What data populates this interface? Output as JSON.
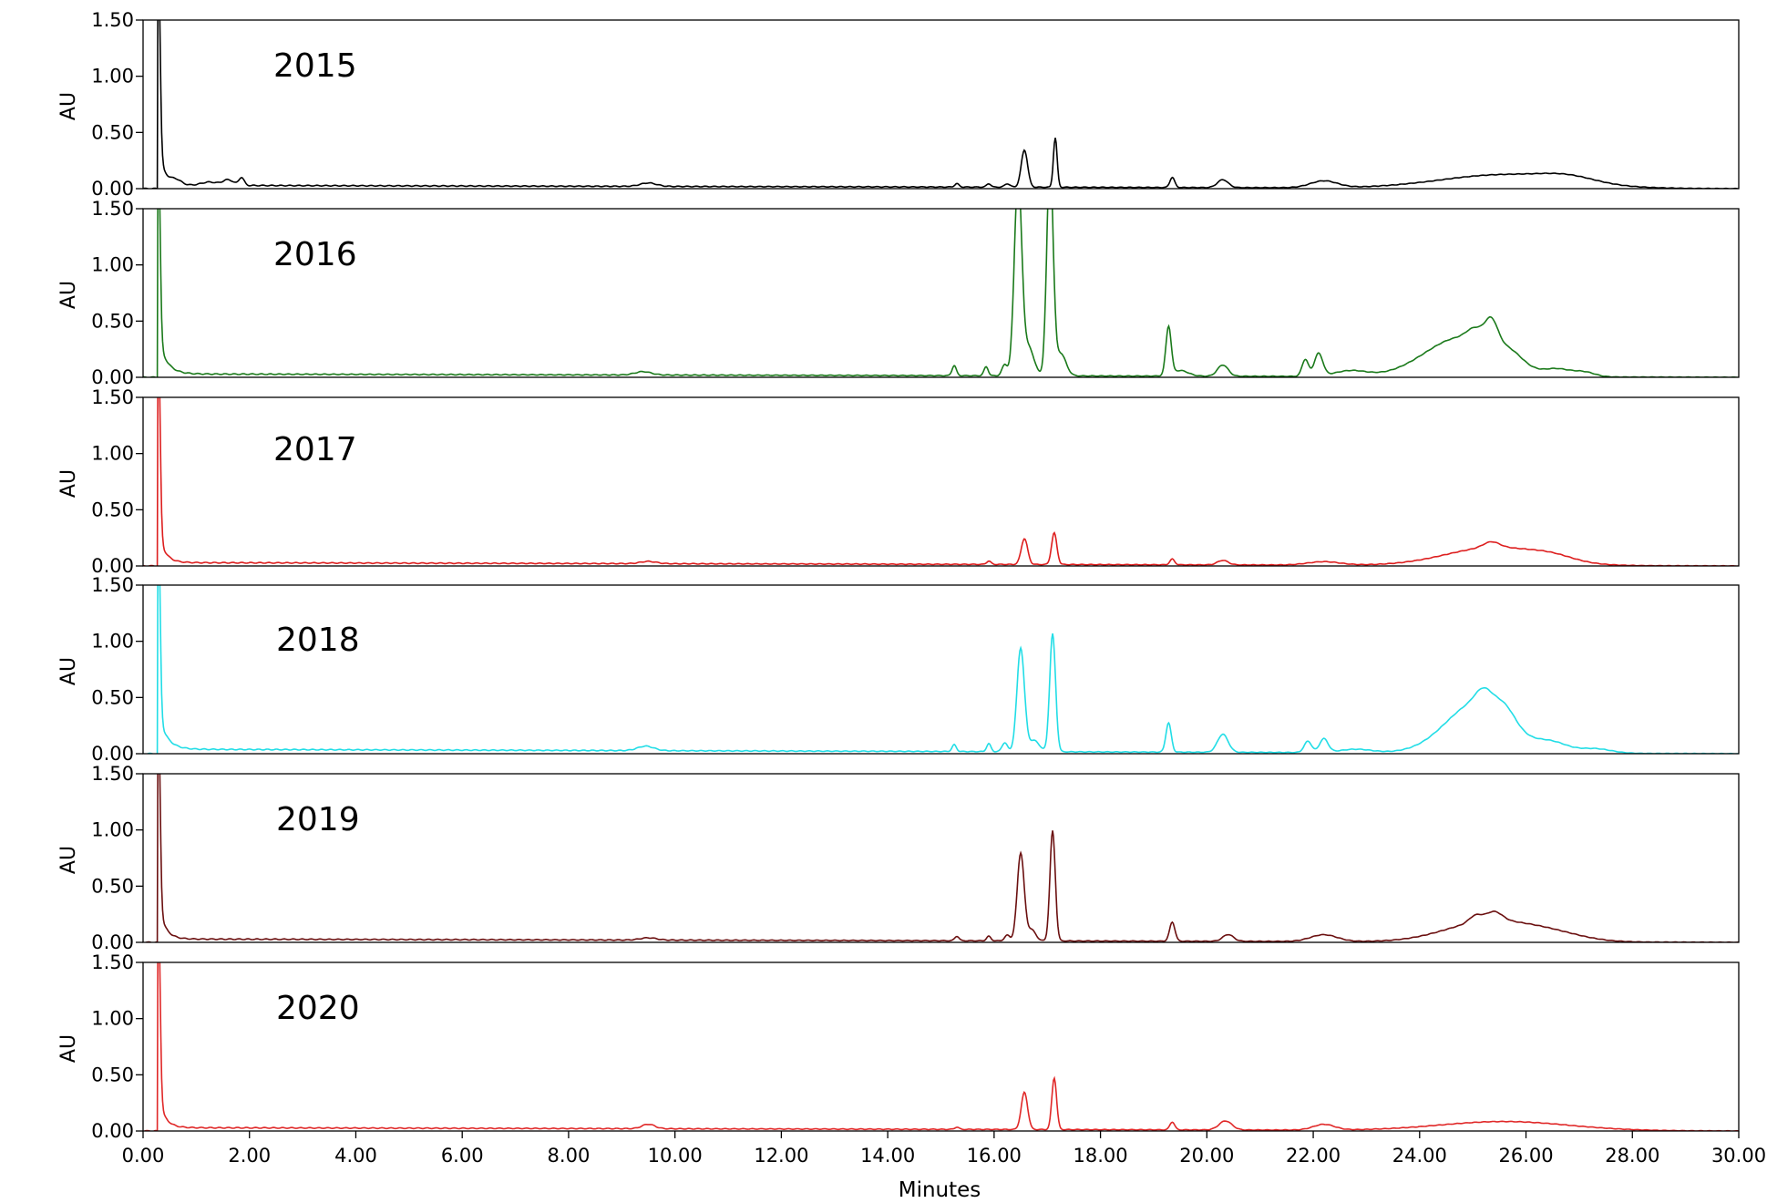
{
  "chart_data": {
    "type": "line",
    "xlabel": "Minutes",
    "ylabel": "AU",
    "xlim": [
      0,
      30
    ],
    "ylim": [
      0,
      1.5
    ],
    "x_ticks": [
      "0.00",
      "2.00",
      "4.00",
      "6.00",
      "8.00",
      "10.00",
      "12.00",
      "14.00",
      "16.00",
      "18.00",
      "20.00",
      "22.00",
      "24.00",
      "26.00",
      "28.00",
      "30.00"
    ],
    "y_ticks": [
      "0.00",
      "0.50",
      "1.00",
      "1.50"
    ],
    "grid": false,
    "panels": [
      {
        "label": "2015",
        "color": "#000000",
        "solvent": {
          "x": 0.28,
          "height": 2.0,
          "width": 0.035
        },
        "tail": {
          "amp": 0.35,
          "tau": 0.12
        },
        "base": 0.03,
        "peaks": [
          [
            0.62,
            0.04,
            0.1
          ],
          [
            1.25,
            0.03,
            0.15
          ],
          [
            1.6,
            0.05,
            0.1
          ],
          [
            1.85,
            0.07,
            0.05
          ],
          [
            9.5,
            0.03,
            0.15
          ],
          [
            15.3,
            0.03,
            0.04
          ],
          [
            15.9,
            0.03,
            0.04
          ],
          [
            16.25,
            0.03,
            0.05
          ],
          [
            16.57,
            0.33,
            0.06
          ],
          [
            17.15,
            0.44,
            0.035
          ],
          [
            19.35,
            0.09,
            0.045
          ],
          [
            20.3,
            0.07,
            0.1
          ],
          [
            22.2,
            0.06,
            0.25
          ],
          [
            25.6,
            0.12,
            1.2
          ],
          [
            26.8,
            0.05,
            0.5
          ]
        ]
      },
      {
        "label": "2016",
        "color": "#1b7a1b",
        "solvent": {
          "x": 0.28,
          "height": 2.0,
          "width": 0.035
        },
        "tail": {
          "amp": 0.35,
          "tau": 0.15
        },
        "base": 0.03,
        "peaks": [
          [
            9.4,
            0.03,
            0.15
          ],
          [
            15.25,
            0.09,
            0.04
          ],
          [
            15.85,
            0.08,
            0.04
          ],
          [
            16.2,
            0.1,
            0.05
          ],
          [
            16.45,
            1.75,
            0.07
          ],
          [
            16.65,
            0.25,
            0.1
          ],
          [
            17.05,
            1.9,
            0.06
          ],
          [
            17.25,
            0.2,
            0.1
          ],
          [
            19.28,
            0.43,
            0.05
          ],
          [
            19.5,
            0.05,
            0.15
          ],
          [
            20.3,
            0.1,
            0.1
          ],
          [
            21.85,
            0.15,
            0.06
          ],
          [
            22.1,
            0.2,
            0.08
          ],
          [
            22.7,
            0.05,
            0.3
          ],
          [
            24.8,
            0.35,
            0.7
          ],
          [
            25.05,
            0.1,
            0.15
          ],
          [
            25.35,
            0.22,
            0.12
          ],
          [
            25.7,
            0.1,
            0.25
          ],
          [
            26.6,
            0.06,
            0.25
          ],
          [
            27.1,
            0.04,
            0.2
          ]
        ]
      },
      {
        "label": "2017",
        "color": "#dd1f1f",
        "solvent": {
          "x": 0.28,
          "height": 2.0,
          "width": 0.035
        },
        "tail": {
          "amp": 0.3,
          "tau": 0.12
        },
        "base": 0.03,
        "peaks": [
          [
            9.5,
            0.02,
            0.15
          ],
          [
            15.9,
            0.03,
            0.04
          ],
          [
            16.57,
            0.23,
            0.06
          ],
          [
            17.13,
            0.28,
            0.05
          ],
          [
            19.35,
            0.05,
            0.045
          ],
          [
            20.3,
            0.04,
            0.1
          ],
          [
            22.2,
            0.03,
            0.3
          ],
          [
            25.4,
            0.16,
            0.9
          ],
          [
            25.35,
            0.05,
            0.15
          ],
          [
            26.5,
            0.04,
            0.4
          ]
        ]
      },
      {
        "label": "2018",
        "color": "#22dde6",
        "solvent": {
          "x": 0.28,
          "height": 2.0,
          "width": 0.035
        },
        "tail": {
          "amp": 0.35,
          "tau": 0.15
        },
        "base": 0.04,
        "peaks": [
          [
            9.45,
            0.04,
            0.15
          ],
          [
            15.25,
            0.06,
            0.04
          ],
          [
            15.9,
            0.07,
            0.04
          ],
          [
            16.2,
            0.08,
            0.05
          ],
          [
            16.5,
            0.92,
            0.07
          ],
          [
            16.75,
            0.1,
            0.1
          ],
          [
            17.1,
            1.05,
            0.055
          ],
          [
            19.28,
            0.26,
            0.05
          ],
          [
            20.3,
            0.16,
            0.1
          ],
          [
            21.9,
            0.1,
            0.07
          ],
          [
            22.2,
            0.12,
            0.08
          ],
          [
            22.8,
            0.03,
            0.3
          ],
          [
            25.1,
            0.45,
            0.6
          ],
          [
            25.2,
            0.12,
            0.15
          ],
          [
            25.6,
            0.12,
            0.2
          ],
          [
            26.5,
            0.08,
            0.3
          ],
          [
            27.3,
            0.04,
            0.3
          ]
        ]
      },
      {
        "label": "2019",
        "color": "#6b1010",
        "solvent": {
          "x": 0.28,
          "height": 2.0,
          "width": 0.035
        },
        "tail": {
          "amp": 0.35,
          "tau": 0.12
        },
        "base": 0.03,
        "peaks": [
          [
            9.5,
            0.02,
            0.15
          ],
          [
            15.3,
            0.04,
            0.04
          ],
          [
            15.9,
            0.04,
            0.04
          ],
          [
            16.25,
            0.05,
            0.05
          ],
          [
            16.5,
            0.78,
            0.065
          ],
          [
            16.7,
            0.1,
            0.08
          ],
          [
            17.1,
            0.98,
            0.05
          ],
          [
            19.35,
            0.17,
            0.05
          ],
          [
            20.4,
            0.06,
            0.1
          ],
          [
            22.2,
            0.06,
            0.25
          ],
          [
            25.3,
            0.18,
            0.8
          ],
          [
            25.05,
            0.06,
            0.12
          ],
          [
            25.4,
            0.08,
            0.15
          ],
          [
            26.5,
            0.06,
            0.6
          ]
        ]
      },
      {
        "label": "2020",
        "color": "#e02828",
        "solvent": {
          "x": 0.28,
          "height": 2.0,
          "width": 0.035
        },
        "tail": {
          "amp": 0.3,
          "tau": 0.12
        },
        "base": 0.03,
        "peaks": [
          [
            9.5,
            0.04,
            0.12
          ],
          [
            15.3,
            0.02,
            0.04
          ],
          [
            16.57,
            0.33,
            0.06
          ],
          [
            17.13,
            0.46,
            0.045
          ],
          [
            19.35,
            0.07,
            0.045
          ],
          [
            20.35,
            0.08,
            0.12
          ],
          [
            22.2,
            0.05,
            0.2
          ],
          [
            25.6,
            0.08,
            1.2
          ]
        ]
      }
    ]
  }
}
